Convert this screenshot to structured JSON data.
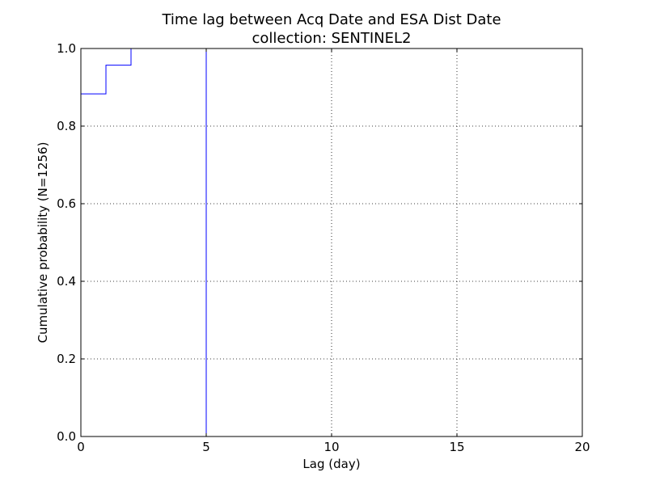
{
  "chart_data": {
    "type": "line",
    "title": "Time lag between Acq Date and ESA Dist Date",
    "subtitle": "collection: SENTINEL2",
    "xlabel": "Lag (day)",
    "ylabel": "Cumulative probability (N=1256)",
    "xlim": [
      0,
      20
    ],
    "ylim": [
      0.0,
      1.0
    ],
    "xticks": [
      0,
      5,
      10,
      15,
      20
    ],
    "xtick_labels": [
      "0",
      "5",
      "10",
      "15",
      "20"
    ],
    "yticks": [
      0.0,
      0.2,
      0.4,
      0.6,
      0.8,
      1.0
    ],
    "ytick_labels": [
      "0.0",
      "0.2",
      "0.4",
      "0.6",
      "0.8",
      "1.0"
    ],
    "grid": true,
    "legend": "none",
    "series": [
      {
        "style": "step",
        "color": "#0000ff",
        "x": [
          0,
          0,
          1,
          1,
          2,
          2,
          5,
          5
        ],
        "y": [
          0.0,
          0.883,
          0.883,
          0.957,
          0.957,
          1.0,
          1.0,
          0.0
        ]
      }
    ]
  }
}
